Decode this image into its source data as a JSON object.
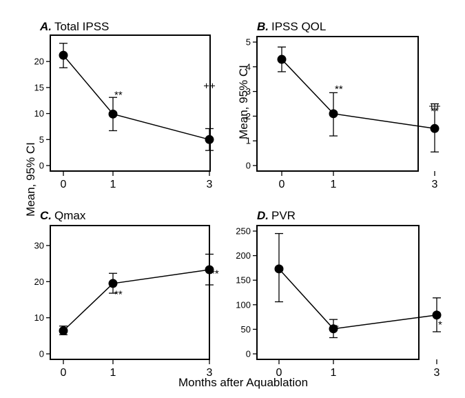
{
  "common": {
    "xlabel": "Months after Aquablation",
    "ylabel": "Mean, 95% CI"
  },
  "chart_data": [
    {
      "type": "line",
      "panel_letter": "A.",
      "title": "Total IPSS",
      "x": [
        0,
        1,
        3
      ],
      "y": [
        21.2,
        9.9,
        5.0
      ],
      "y_low": [
        18.8,
        6.7,
        2.9
      ],
      "y_high": [
        23.5,
        13.1,
        7.1
      ],
      "ylim": [
        0,
        24
      ],
      "yticks": [
        0,
        5,
        10,
        15,
        20
      ],
      "xticks": [
        0,
        1,
        3
      ],
      "annotations": [
        {
          "x": 1,
          "y": 13.6,
          "text": "**",
          "anchor": "start"
        },
        {
          "x": 3,
          "y": 15.3,
          "text": "++",
          "anchor": "middle"
        }
      ]
    },
    {
      "type": "line",
      "panel_letter": "B.",
      "title": "IPSS QOL",
      "x": [
        0,
        1,
        3
      ],
      "y": [
        4.3,
        2.1,
        1.5
      ],
      "y_low": [
        3.8,
        1.2,
        0.55
      ],
      "y_high": [
        4.8,
        2.95,
        2.5
      ],
      "ylim": [
        0,
        5
      ],
      "yticks": [
        0,
        1,
        2,
        3,
        4,
        5
      ],
      "xticks": [
        0,
        1,
        3
      ],
      "annotations": [
        {
          "x": 1,
          "y": 3.1,
          "text": "**",
          "anchor": "start"
        },
        {
          "x": 3,
          "y": 2.4,
          "text": "++",
          "anchor": "middle"
        },
        {
          "x": 3,
          "y": 2.2,
          "text": "**",
          "anchor": "middle"
        }
      ]
    },
    {
      "type": "line",
      "panel_letter": "C.",
      "title": "Qmax",
      "x": [
        0,
        1,
        3
      ],
      "y": [
        6.4,
        19.5,
        23.3
      ],
      "y_low": [
        5.3,
        16.8,
        19.1
      ],
      "y_high": [
        7.7,
        22.3,
        27.6
      ],
      "ylim": [
        0,
        34
      ],
      "yticks": [
        0,
        10,
        20,
        30
      ],
      "xticks": [
        0,
        1,
        3
      ],
      "annotations": [
        {
          "x": 1,
          "y": 16.5,
          "text": "**",
          "anchor": "start"
        },
        {
          "x": 3,
          "y": 22.3,
          "text": "**",
          "anchor": "start"
        }
      ]
    },
    {
      "type": "line",
      "panel_letter": "D.",
      "title": "PVR",
      "x": [
        0,
        1,
        3
      ],
      "y": [
        173,
        51,
        79
      ],
      "y_low": [
        106,
        33,
        45
      ],
      "y_high": [
        245,
        70,
        114
      ],
      "ylim": [
        0,
        250
      ],
      "yticks": [
        0,
        50,
        100,
        150,
        200,
        250
      ],
      "xticks": [
        0,
        1,
        3
      ],
      "annotations": [
        {
          "x": 1,
          "y": 52,
          "text": "*",
          "anchor": "start"
        },
        {
          "x": 3,
          "y": 60,
          "text": "*",
          "anchor": "start"
        }
      ]
    }
  ]
}
